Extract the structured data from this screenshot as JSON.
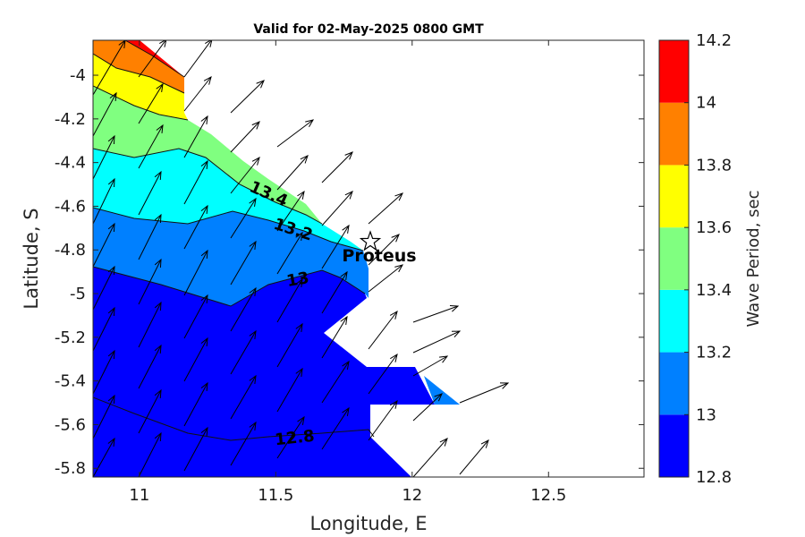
{
  "chart_data": {
    "type": "contour",
    "title": "Valid for 02-May-2025 0800 GMT",
    "xlabel": "Longitude, E",
    "ylabel": "Latitude, S",
    "xlim": [
      10.83,
      12.85
    ],
    "ylim": [
      -5.84,
      -3.84
    ],
    "xticks": [
      11,
      11.5,
      12,
      12.5
    ],
    "xtick_labels": [
      "11",
      "11.5",
      "12",
      "12.5"
    ],
    "yticks": [
      -4,
      -4.2,
      -4.4,
      -4.6,
      -4.8,
      -5,
      -5.2,
      -5.4,
      -5.6,
      -5.8
    ],
    "ytick_labels": [
      "-4",
      "-4.2",
      "-4.4",
      "-4.6",
      "-4.8",
      "-5",
      "-5.2",
      "-5.4",
      "-5.6",
      "-5.8"
    ],
    "colorbar": {
      "label": "Wave Period, sec",
      "levels": [
        12.8,
        13,
        13.2,
        13.4,
        13.6,
        13.8,
        14,
        14.2
      ],
      "tick_labels": [
        "12.8",
        "13",
        "13.2",
        "13.4",
        "13.6",
        "13.8",
        "14",
        "14.2"
      ],
      "colors": [
        "#0000ff",
        "#0080ff",
        "#00ffff",
        "#80ff80",
        "#ffff00",
        "#ff8000",
        "#ff0000"
      ]
    },
    "contour_labels": [
      {
        "text": "13.4",
        "lon": 11.47,
        "lat": -4.52
      },
      {
        "text": "13.2",
        "lon": 11.56,
        "lat": -4.7
      },
      {
        "text": "13",
        "lon": 11.57,
        "lat": -4.92
      },
      {
        "text": "12.8",
        "lon": 11.55,
        "lat": -5.64
      }
    ],
    "station": {
      "name": "Proteus",
      "lon": 11.83,
      "lat": -4.77
    },
    "wave_direction": "arrows pointing north-east across the domain"
  }
}
